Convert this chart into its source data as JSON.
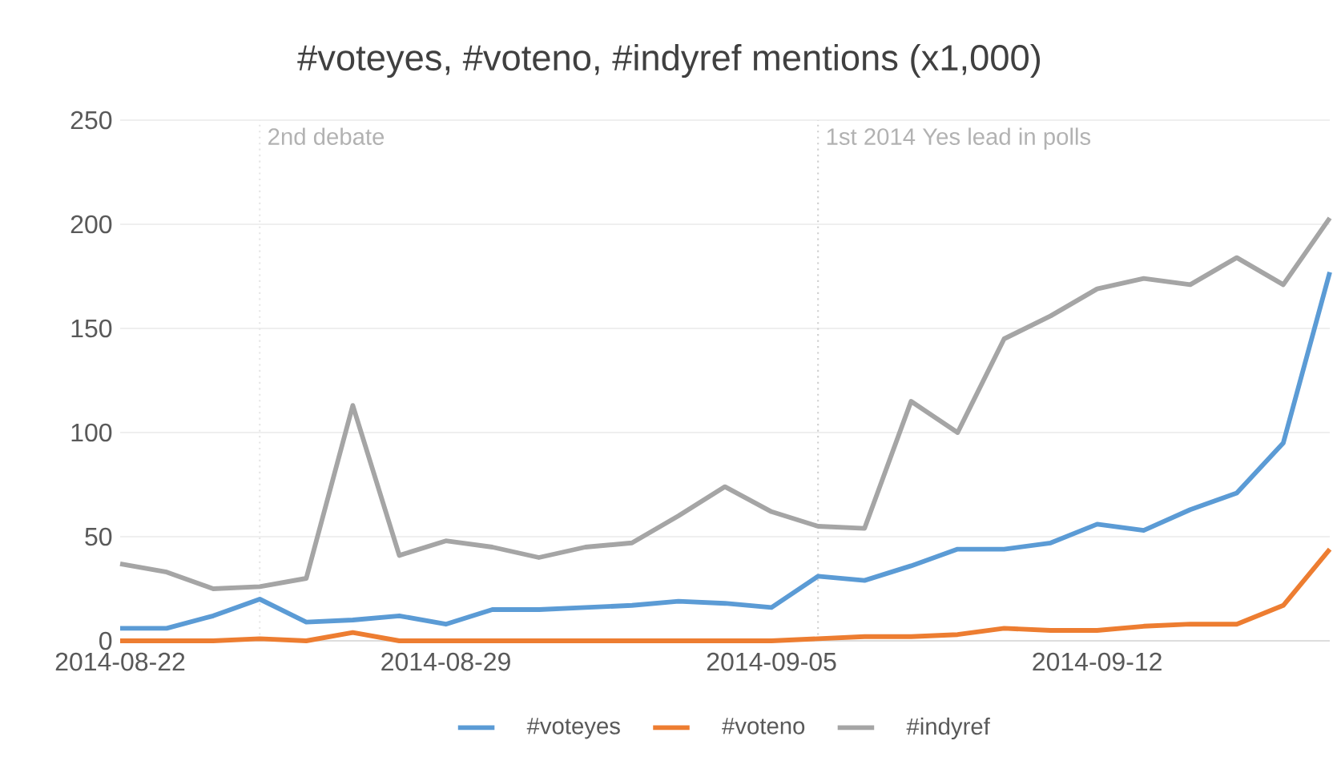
{
  "chart_data": {
    "type": "line",
    "title": "#voteyes, #voteno, #indyref mentions (x1,000)",
    "x": [
      "2014-08-22",
      "2014-08-23",
      "2014-08-24",
      "2014-08-25",
      "2014-08-26",
      "2014-08-27",
      "2014-08-28",
      "2014-08-29",
      "2014-08-30",
      "2014-08-31",
      "2014-09-01",
      "2014-09-02",
      "2014-09-03",
      "2014-09-04",
      "2014-09-05",
      "2014-09-06",
      "2014-09-07",
      "2014-09-08",
      "2014-09-09",
      "2014-09-10",
      "2014-09-11",
      "2014-09-12",
      "2014-09-13",
      "2014-09-14",
      "2014-09-15",
      "2014-09-16",
      "2014-09-17"
    ],
    "series": [
      {
        "name": "#voteyes",
        "color": "#5b9bd5",
        "values": [
          6,
          6,
          12,
          20,
          9,
          10,
          12,
          8,
          15,
          15,
          16,
          17,
          19,
          18,
          16,
          31,
          29,
          36,
          44,
          44,
          47,
          56,
          53,
          63,
          71,
          95,
          177
        ]
      },
      {
        "name": "#voteno",
        "color": "#ed7d31",
        "values": [
          0,
          0,
          0,
          1,
          0,
          4,
          0,
          0,
          0,
          0,
          0,
          0,
          0,
          0,
          0,
          1,
          2,
          2,
          3,
          6,
          5,
          5,
          7,
          8,
          8,
          17,
          44
        ]
      },
      {
        "name": "#indyref",
        "color": "#a5a5a5",
        "values": [
          37,
          33,
          25,
          26,
          30,
          113,
          41,
          48,
          45,
          40,
          45,
          47,
          60,
          74,
          62,
          55,
          54,
          115,
          100,
          145,
          156,
          169,
          174,
          171,
          184,
          171,
          203
        ]
      }
    ],
    "xlim": [
      "2014-08-22",
      "2014-09-17"
    ],
    "xticks": [
      {
        "value": "2014-08-22",
        "label": "2014-08-22"
      },
      {
        "value": "2014-08-29",
        "label": "2014-08-29"
      },
      {
        "value": "2014-09-05",
        "label": "2014-09-05"
      },
      {
        "value": "2014-09-12",
        "label": "2014-09-12"
      }
    ],
    "ylim": [
      0,
      250
    ],
    "yticks": [
      0,
      50,
      100,
      150,
      200,
      250
    ],
    "ref_lines": [
      {
        "axis": "x",
        "value": "2014-08-25",
        "label": "2nd debate",
        "color": "#e6e6e6",
        "line_style": "dotted"
      },
      {
        "axis": "x",
        "value": "2014-09-06",
        "label": "1st 2014 Yes lead in polls",
        "color": "#d0d0d0",
        "line_style": "dotted"
      }
    ],
    "grid": "y",
    "legend": "bottom",
    "line_style": "solid",
    "marker": "none"
  }
}
